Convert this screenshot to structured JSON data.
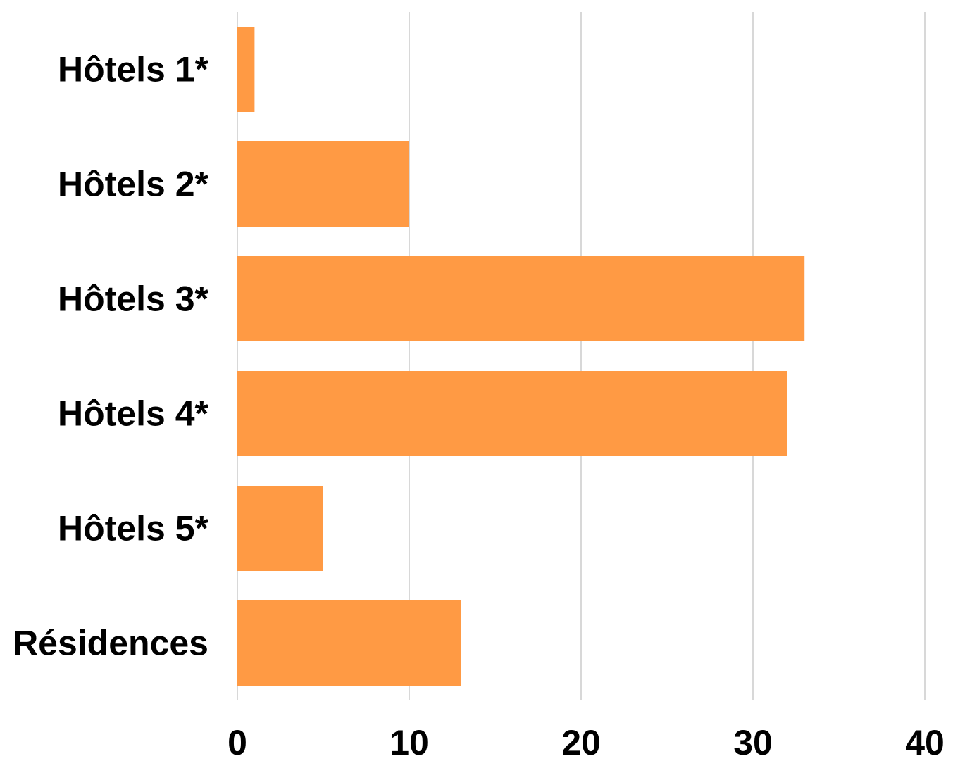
{
  "chart_data": {
    "type": "bar",
    "orientation": "horizontal",
    "categories": [
      "Hôtels 1*",
      "Hôtels 2*",
      "Hôtels 3*",
      "Hôtels 4*",
      "Hôtels 5*",
      "Résidences"
    ],
    "values": [
      1,
      10,
      33,
      32,
      5,
      13
    ],
    "x_ticks": [
      "0",
      "10",
      "20",
      "30",
      "40"
    ],
    "xlim": [
      0,
      40
    ],
    "grid": true,
    "title": "",
    "xlabel": "",
    "ylabel": "",
    "colors": {
      "bar": "#FF9A44",
      "grid": "#CCCCCC",
      "text": "#000000"
    }
  }
}
